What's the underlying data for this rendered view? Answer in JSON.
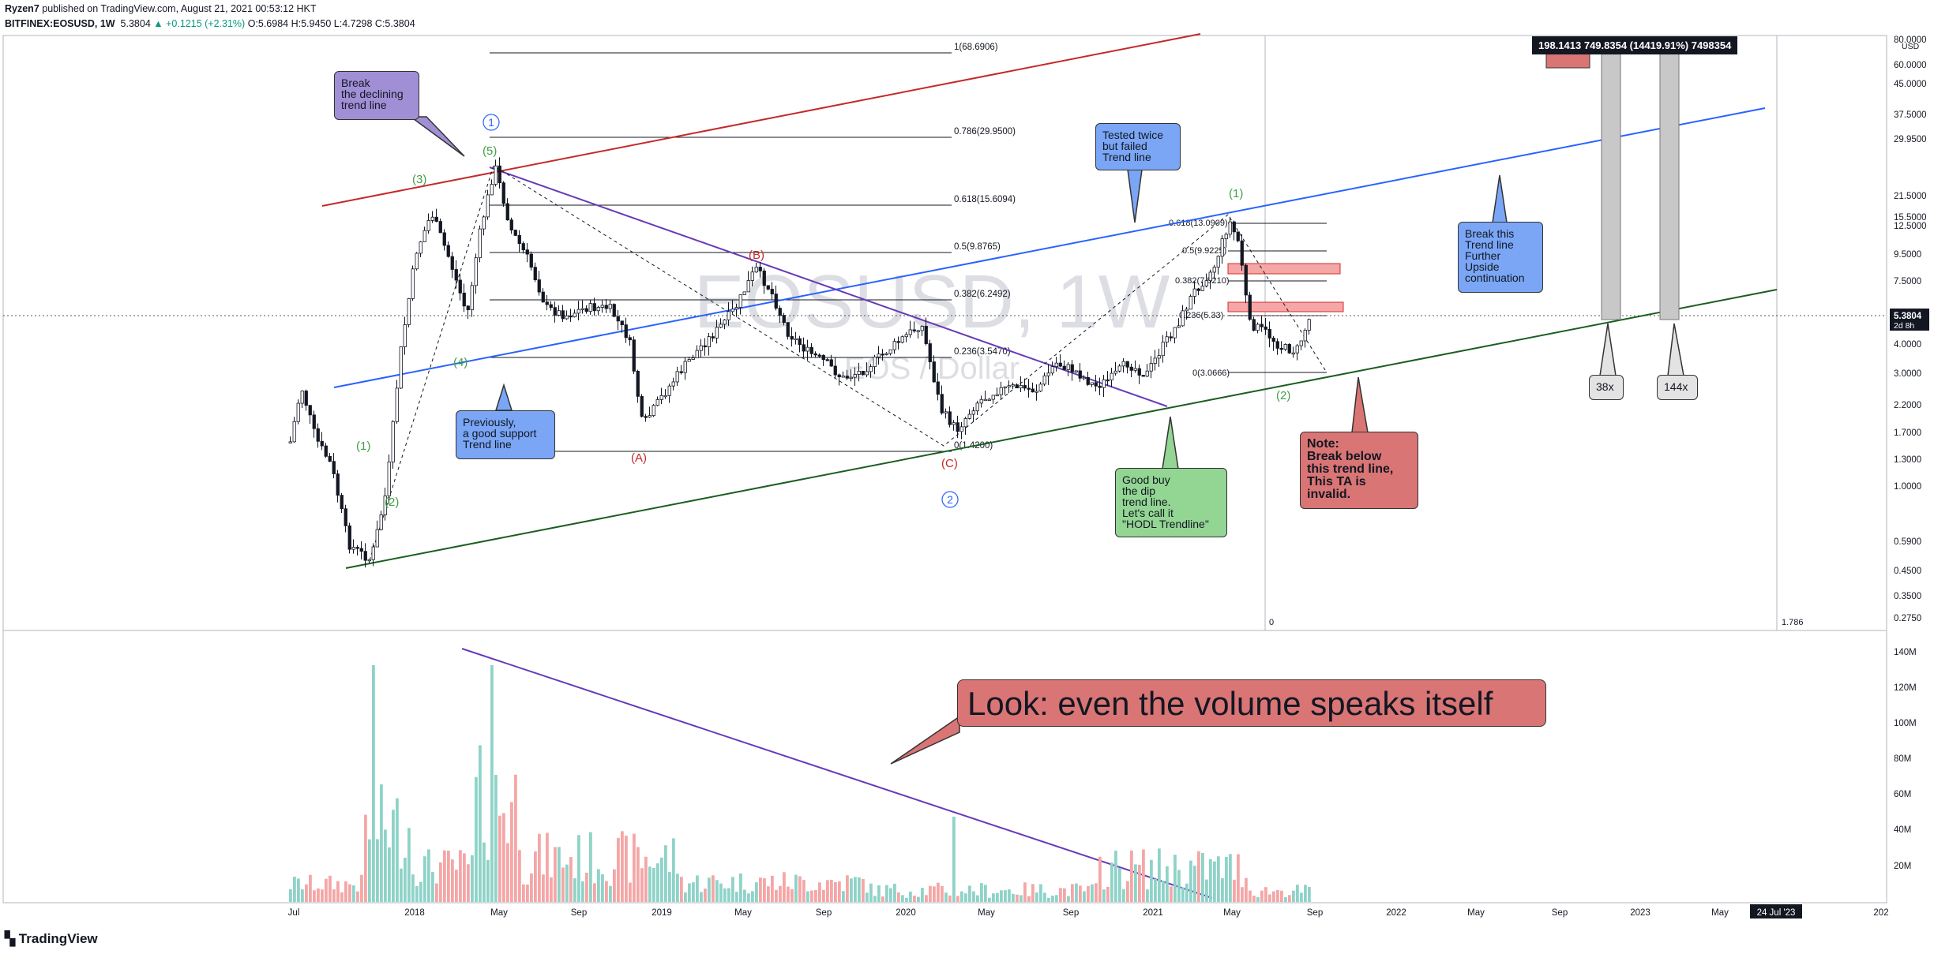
{
  "header": {
    "author": "Ryzen7",
    "published": "published on TradingView.com, August 21, 2021 00:53:12 HKT",
    "symbol": "BITFINEX:EOSUSD, 1W",
    "last": "5.3804",
    "change": "+0.1215 (+2.31%)",
    "ohlc": "O:5.6984 H:5.9450 L:4.7298 C:5.3804"
  },
  "watermark": {
    "title": "EOSUSD, 1W",
    "subtitle": "EOS / Dollar"
  },
  "footer": {
    "logo": "TradingView"
  },
  "colors": {
    "up": "#089981",
    "down": "#f23645",
    "vol_up": "#8fd3c8",
    "vol_down": "#f5a6a6",
    "red_line": "#c62828",
    "blue_line": "#2962ff",
    "green_line": "#1b5e20",
    "purple_line": "#673ab7"
  },
  "chart_data": {
    "type": "candlestick",
    "symbol": "EOSUSD",
    "timeframe": "1W",
    "scale": "log",
    "price_axis_ticks": [
      "80.0000",
      "60.0000",
      "45.0000",
      "37.5000",
      "29.9500",
      "21.5000",
      "15.5000",
      "12.5000",
      "9.5000",
      "7.5000",
      "5.3804",
      "4.0000",
      "3.0000",
      "2.2000",
      "1.7000",
      "1.3000",
      "1.0000",
      "0.5900",
      "0.4500",
      "0.3500",
      "0.2750"
    ],
    "price_axis_unit": "USD",
    "last_price_label": "5.3804",
    "countdown_label": "2d 8h",
    "volume_axis_ticks": [
      "140M",
      "120M",
      "100M",
      "80M",
      "60M",
      "40M",
      "20M"
    ],
    "time_axis_ticks": [
      "Jul",
      "2018",
      "May",
      "Sep",
      "2019",
      "May",
      "Sep",
      "2020",
      "May",
      "Sep",
      "2021",
      "May",
      "Sep",
      "2022",
      "May",
      "Sep",
      "2023",
      "May",
      "24 Jul '23",
      "202"
    ],
    "fib_levels": [
      {
        "label": "1(68.6906)"
      },
      {
        "label": "0.786(29.9500)"
      },
      {
        "label": "0.618(15.6094)"
      },
      {
        "label": "0.5(9.8765)"
      },
      {
        "label": "0.382(6.2492)"
      },
      {
        "label": "0.236(3.5470)"
      },
      {
        "label": "0(1.4200)"
      }
    ],
    "fib_levels_2": [
      {
        "label": "0.618(13.0909)"
      },
      {
        "label": "0.5(9.9225)"
      },
      {
        "label": "0.382(7.5210)"
      },
      {
        "label": "0.236(5.33)"
      },
      {
        "label": "0(3.0666)"
      }
    ],
    "wave_labels": [
      "(1)",
      "(2)",
      "(3)",
      "(4)",
      "(5)",
      "(A)",
      "(B)",
      "(C)",
      "(1)",
      "(2)"
    ],
    "circle_labels": [
      "1",
      "2"
    ],
    "measure_box": "198.1413  749.8354 (14419.91%) 7498354",
    "side_axis_values": [
      "0",
      "1.786"
    ]
  },
  "annotations": {
    "break_declining": "Break\nthe declining\ntrend line",
    "previously_support": "Previously,\na good support\nTrend line",
    "tested_twice": "Tested twice\nbut failed\nTrend line",
    "good_buy": "Good buy\nthe dip\ntrend line.\nLet's call it\n\"HODL Trendline\"",
    "note_invalid": "Note:\nBreak below\nthis trend line,\nThis TA is\ninvalid.",
    "break_further": "Break this\nTrend line\nFurther\nUpside\ncontinuation",
    "x38": "38x",
    "x144": "144x",
    "volume_note": "Look: even the volume speaks itself"
  }
}
